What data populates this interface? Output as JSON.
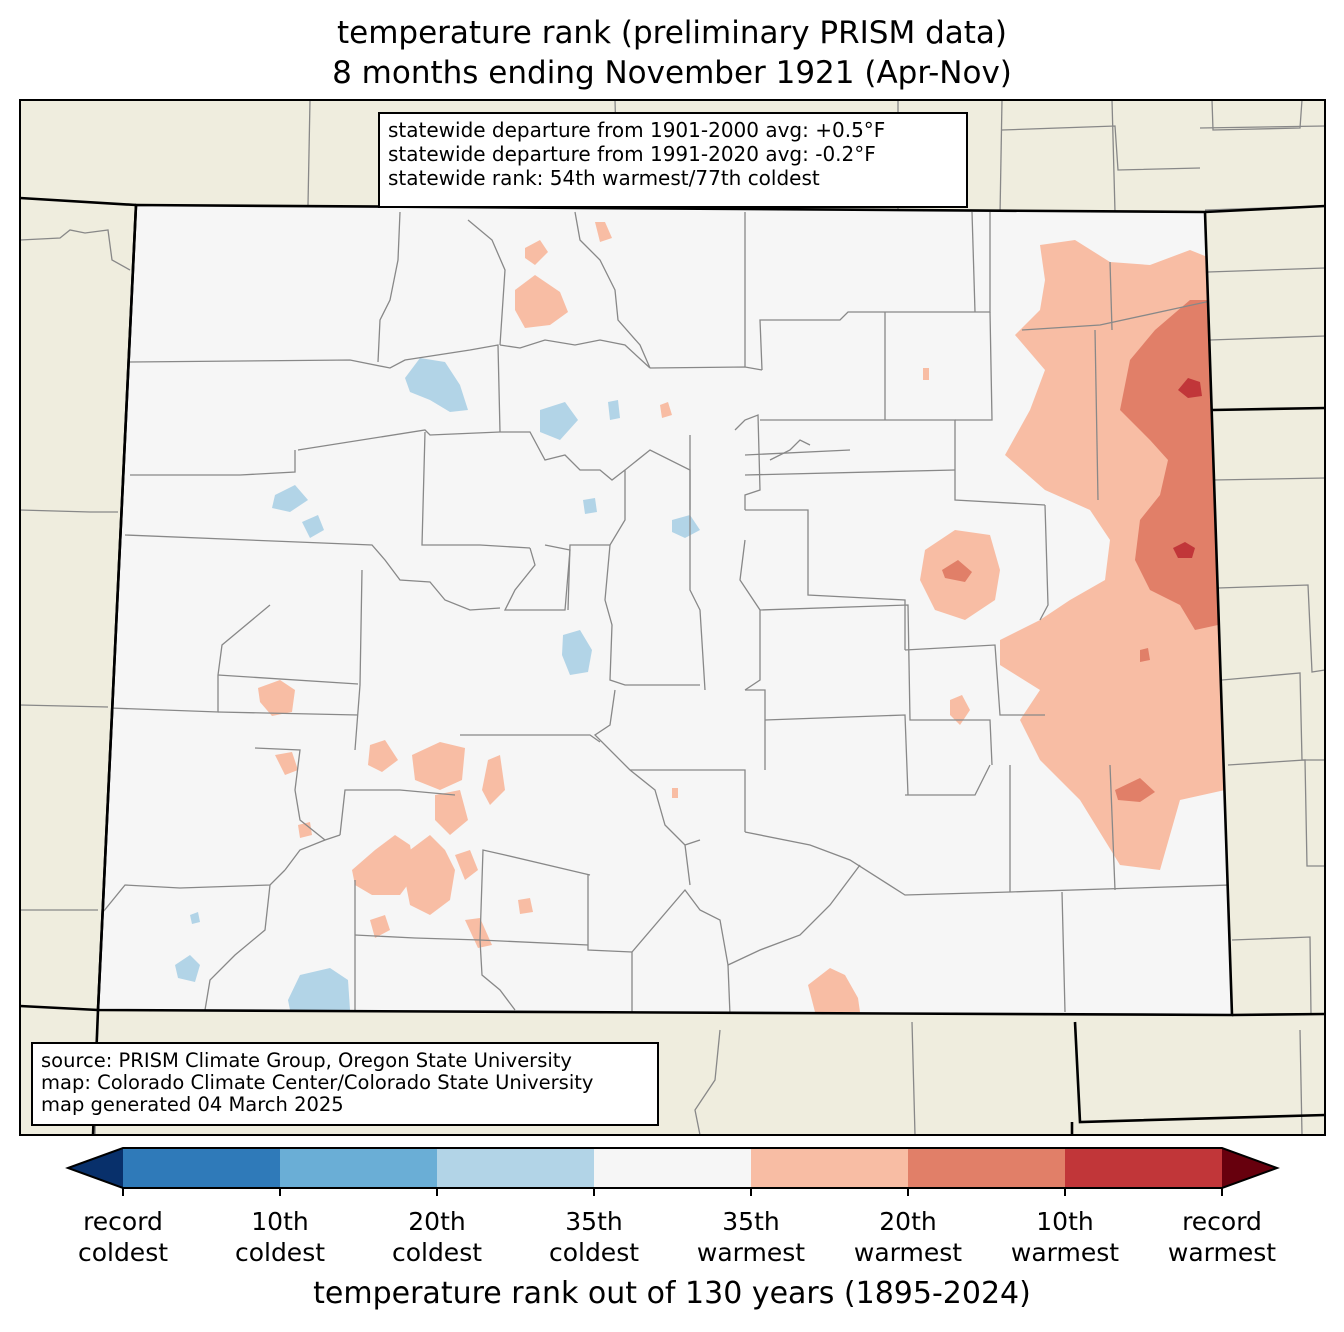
{
  "title": {
    "line1": "temperature rank (preliminary PRISM data)",
    "line2": "8 months ending November 1921 (Apr-Nov)"
  },
  "stats": {
    "line1": "statewide departure from 1901-2000 avg: +0.5°F",
    "line2": "statewide departure from 1991-2020 avg: -0.2°F",
    "line3": "statewide rank: 54th warmest/77th coldest"
  },
  "source": {
    "line1": "source: PRISM Climate Group, Oregon State University",
    "line2": "map: Colorado Climate Center/Colorado State University",
    "line3": "map generated 04 March 2025"
  },
  "colorbar": {
    "label": "temperature rank out of 130 years (1895-2024)",
    "colors": [
      "#08306b",
      "#2f7ab9",
      "#6aaed6",
      "#b2d4e7",
      "#f6f6f6",
      "#f8bda4",
      "#e17f68",
      "#c13639",
      "#67000d"
    ],
    "ticks": [
      {
        "line1": "record",
        "line2": "coldest"
      },
      {
        "line1": "10th",
        "line2": "coldest"
      },
      {
        "line1": "20th",
        "line2": "coldest"
      },
      {
        "line1": "35th",
        "line2": "coldest"
      },
      {
        "line1": "35th",
        "line2": "warmest"
      },
      {
        "line1": "20th",
        "line2": "warmest"
      },
      {
        "line1": "10th",
        "line2": "warmest"
      },
      {
        "line1": "record",
        "line2": "warmest"
      }
    ]
  },
  "map_colors": {
    "background": "#efedde",
    "state_fill": "#f6f6f6",
    "county_line": "#888888",
    "state_line": "#000000"
  }
}
